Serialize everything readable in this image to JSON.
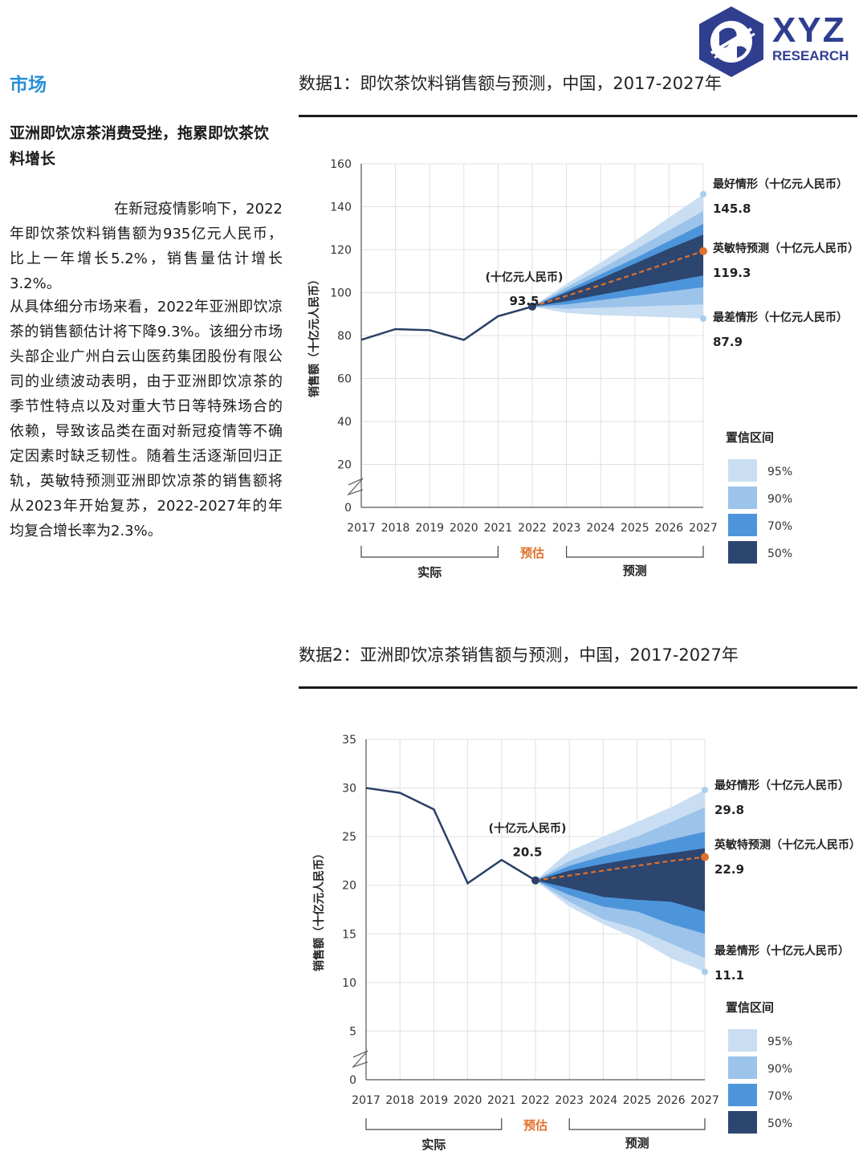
{
  "logo": {
    "brand": "XYZ",
    "sub": "RESEARCH"
  },
  "section_label": "市场",
  "left_heading": "亚洲即饮凉茶消费受挫，拖累即饮茶饮料增长",
  "paragraphs": [
    "在新冠疫情影响下，2022年即饮茶饮料销售额为935亿元人民币，比上一年增长5.2%，销售量估计增长3.2%。",
    "从具体细分市场来看，2022年亚洲即饮凉茶的销售额估计将下降9.3%。该细分市场头部企业广州白云山医药集团股份有限公司的业绩波动表明，由于亚洲即饮凉茶的季节性特点以及对重大节日等特殊场合的依赖，导致该品类在面对新冠疫情等不确定因素时缺乏韧性。随着生活逐渐回归正轨，英敏特预测亚洲即饮凉茶的销售额将从2023年开始复苏，2022-2027年的年均复合增长率为2.3%。"
  ],
  "colors": {
    "actual_line": "#2b3f66",
    "forecast_line": "#e0702a",
    "ci95": "#c9def2",
    "ci90": "#9cc3ea",
    "ci70": "#4d95db",
    "ci50": "#2c4670"
  },
  "chart_data": [
    {
      "type": "line",
      "title": "数据1：即饮茶饮料销售额与预测，中国，2017-2027年",
      "ylabel": "销售额（十亿元人民币）",
      "ylim": [
        0,
        160
      ],
      "yticks": [
        0,
        20,
        40,
        60,
        80,
        100,
        120,
        140,
        160
      ],
      "x": [
        "2017",
        "2018",
        "2019",
        "2020",
        "2021",
        "2022",
        "2023",
        "2024",
        "2025",
        "2026",
        "2027"
      ],
      "actual": [
        78,
        83,
        82.5,
        78,
        89,
        93.5
      ],
      "forecast": [
        93.5,
        98.5,
        103.5,
        108.7,
        114,
        119.3
      ],
      "bands": {
        "p95": {
          "low": [
            93.5,
            90.5,
            89.5,
            89,
            88.5,
            87.9
          ],
          "high": [
            93.5,
            104,
            114,
            124,
            135,
            145.8
          ]
        },
        "p90": {
          "low": [
            93.5,
            92.5,
            93,
            93.5,
            94,
            94.5
          ],
          "high": [
            93.5,
            102.5,
            111,
            120,
            129,
            138
          ]
        },
        "p70": {
          "low": [
            93.5,
            94.5,
            96.5,
            98.5,
            100.5,
            102.5
          ],
          "high": [
            93.5,
            101,
            108.5,
            116,
            124,
            132
          ]
        },
        "p50": {
          "low": [
            93.5,
            96,
            99,
            102,
            105,
            108
          ],
          "high": [
            93.5,
            100,
            106.5,
            113.5,
            120.5,
            127
          ]
        }
      },
      "point_label": "(十亿元人民币)",
      "point_value": "93.5",
      "annotations": [
        {
          "label": "最好情形（十亿元人民币）",
          "value": "145.8"
        },
        {
          "label": "英敏特预测（十亿元人民币）",
          "value": "119.3"
        },
        {
          "label": "最差情形（十亿元人民币）",
          "value": "87.9"
        }
      ],
      "legend_title": "置信区间",
      "legend": [
        "95%",
        "90%",
        "70%",
        "50%"
      ],
      "phase_labels": {
        "actual": "实际",
        "estimate": "预估",
        "forecast": "预测"
      }
    },
    {
      "type": "line",
      "title": "数据2：亚洲即饮凉茶销售额与预测，中国，2017-2027年",
      "ylabel": "销售额（十亿元人民币）",
      "ylim": [
        0,
        35
      ],
      "yticks": [
        0,
        5,
        10,
        15,
        20,
        25,
        30,
        35
      ],
      "x": [
        "2017",
        "2018",
        "2019",
        "2020",
        "2021",
        "2022",
        "2023",
        "2024",
        "2025",
        "2026",
        "2027"
      ],
      "actual": [
        30,
        29.5,
        27.8,
        20.2,
        22.6,
        20.5
      ],
      "forecast": [
        20.5,
        21,
        21.5,
        22,
        22.5,
        22.9
      ],
      "bands": {
        "p95": {
          "low": [
            20.5,
            17.8,
            16,
            14.5,
            12.5,
            11.1
          ],
          "high": [
            20.5,
            23.5,
            25,
            26.5,
            28,
            29.8
          ]
        },
        "p90": {
          "low": [
            20.5,
            18.3,
            16.5,
            15.5,
            14,
            12.5
          ],
          "high": [
            20.5,
            22.5,
            23.8,
            25,
            26.5,
            28
          ]
        },
        "p70": {
          "low": [
            20.5,
            19,
            17.8,
            17.3,
            16,
            15
          ],
          "high": [
            20.5,
            22,
            23,
            23.8,
            24.7,
            25.5
          ]
        },
        "p50": {
          "low": [
            20.5,
            19.7,
            18.8,
            18.5,
            18.3,
            17.3
          ],
          "high": [
            20.5,
            21.5,
            22.2,
            22.8,
            23.3,
            23.8
          ]
        }
      },
      "point_label": "(十亿元人民币)",
      "point_value": "20.5",
      "annotations": [
        {
          "label": "最好情形（十亿元人民币）",
          "value": "29.8"
        },
        {
          "label": "英敏特预测（十亿元人民币）",
          "value": "22.9"
        },
        {
          "label": "最差情形（十亿元人民币）",
          "value": "11.1"
        }
      ],
      "legend_title": "置信区间",
      "legend": [
        "95%",
        "90%",
        "70%",
        "50%"
      ],
      "phase_labels": {
        "actual": "实际",
        "estimate": "预估",
        "forecast": "预测"
      }
    }
  ]
}
